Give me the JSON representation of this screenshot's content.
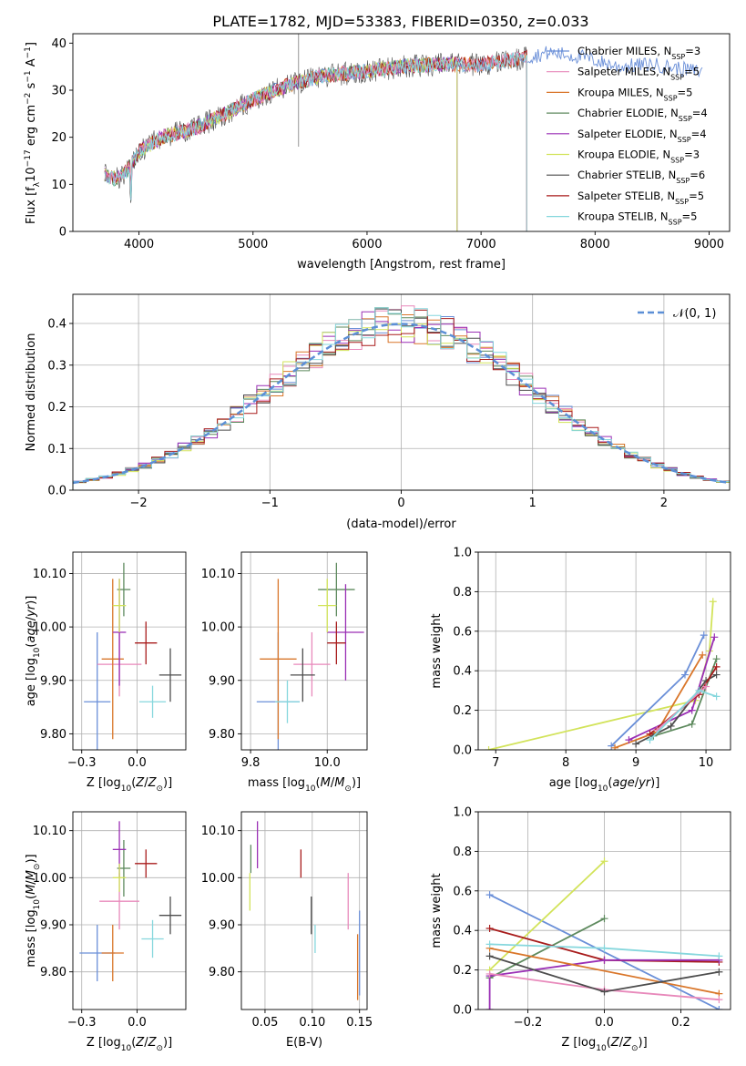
{
  "title": "PLATE=1782, MJD=53383, FIBERID=0350, z=0.033",
  "colors": {
    "chabrier_miles": "#6a8fd8",
    "salpeter_miles": "#e889bb",
    "kroupa_miles": "#d9762a",
    "chabrier_elodie": "#5e8a5e",
    "salpeter_elodie": "#9a2fb5",
    "kroupa_elodie": "#d2e35a",
    "chabrier_stelib": "#4d4d4d",
    "salpeter_stelib": "#a81c1c",
    "kroupa_stelib": "#86d7dd"
  },
  "chart_data": [
    {
      "id": "spectrum",
      "type": "line",
      "xlabel": "wavelength [Angstrom, rest frame]",
      "ylabel": "Flux [f_λ10^-17 erg cm^-2 s^-1 A^-1]",
      "xlim": [
        3420,
        9180
      ],
      "ylim": [
        0,
        42
      ],
      "xticks": [
        4000,
        5000,
        6000,
        7000,
        8000,
        9000
      ],
      "yticks": [
        0,
        10,
        20,
        30,
        40
      ],
      "grid": false,
      "legend_position": "top-right",
      "continuum": {
        "x": [
          3700,
          3800,
          3900,
          4000,
          4200,
          4500,
          4800,
          5000,
          5300,
          5600,
          6000,
          6300,
          6600,
          7000,
          7300,
          7600,
          7900,
          8200,
          8500,
          8900
        ],
        "y": [
          12,
          11,
          13,
          17,
          20,
          22,
          25.5,
          28,
          31,
          33,
          34,
          35,
          35.5,
          35.5,
          36.5,
          38,
          37,
          35,
          35.5,
          34
        ]
      },
      "series": [
        {
          "name": "Chabrier MILES, N_SSP=3",
          "color_key": "chabrier_miles",
          "xmax": 8940
        },
        {
          "name": "Salpeter MILES, N_SSP=5",
          "color_key": "salpeter_miles",
          "xmax": 7400
        },
        {
          "name": "Kroupa MILES, N_SSP=5",
          "color_key": "kroupa_miles",
          "xmax": 7400
        },
        {
          "name": "Chabrier ELODIE, N_SSP=4",
          "color_key": "chabrier_elodie",
          "xmax": 6790
        },
        {
          "name": "Salpeter ELODIE, N_SSP=4",
          "color_key": "salpeter_elodie",
          "xmax": 6790
        },
        {
          "name": "Kroupa ELODIE, N_SSP=3",
          "color_key": "kroupa_elodie",
          "xmax": 6790
        },
        {
          "name": "Chabrier STELIB, N_SSP=6",
          "color_key": "chabrier_stelib",
          "xmax": 7400
        },
        {
          "name": "Salpeter STELIB, N_SSP=5",
          "color_key": "salpeter_stelib",
          "xmax": 7400
        },
        {
          "name": "Kroupa STELIB, N_SSP=5",
          "color_key": "kroupa_stelib",
          "xmax": 7400
        }
      ]
    },
    {
      "id": "residuals",
      "type": "line",
      "xlabel": "(data-model)/error",
      "ylabel": "Normed distribution",
      "xlim": [
        -2.5,
        2.5
      ],
      "ylim": [
        0,
        0.47
      ],
      "xticks": [
        -2,
        -1,
        0,
        1,
        2
      ],
      "yticks": [
        0.0,
        0.1,
        0.2,
        0.3,
        0.4
      ],
      "grid": true,
      "legend_position": "top-right",
      "legend": "N(0,1)",
      "bin_width": 0.1
    },
    {
      "id": "age_vs_Z",
      "type": "scatter",
      "xlabel": "Z [log10(Z/Z⊙)]",
      "ylabel": "age [log10(age/yr)]",
      "xlim": [
        -0.29,
        0.22
      ],
      "ylim": [
        9.77,
        10.14
      ],
      "xticks": [
        -0.25,
        0.0
      ],
      "yticks": [
        9.8,
        9.9,
        10.0,
        10.1
      ],
      "grid": true,
      "points": [
        {
          "color_key": "chabrier_miles",
          "x": -0.18,
          "y": 9.86,
          "xerr": 0.06,
          "yerr": 0.13
        },
        {
          "color_key": "salpeter_miles",
          "x": -0.08,
          "y": 9.93,
          "xerr": 0.1,
          "yerr": 0.06
        },
        {
          "color_key": "kroupa_miles",
          "x": -0.11,
          "y": 9.94,
          "xerr": 0.05,
          "yerr": 0.15
        },
        {
          "color_key": "chabrier_elodie",
          "x": -0.06,
          "y": 10.07,
          "xerr": 0.03,
          "yerr": 0.05
        },
        {
          "color_key": "salpeter_elodie",
          "x": -0.08,
          "y": 9.99,
          "xerr": 0.03,
          "yerr": 0.1
        },
        {
          "color_key": "kroupa_elodie",
          "x": -0.08,
          "y": 10.04,
          "xerr": 0.03,
          "yerr": 0.05
        },
        {
          "color_key": "chabrier_stelib",
          "x": 0.15,
          "y": 9.91,
          "xerr": 0.05,
          "yerr": 0.05
        },
        {
          "color_key": "salpeter_stelib",
          "x": 0.04,
          "y": 9.97,
          "xerr": 0.05,
          "yerr": 0.04
        },
        {
          "color_key": "kroupa_stelib",
          "x": 0.07,
          "y": 9.86,
          "xerr": 0.06,
          "yerr": 0.03
        }
      ]
    },
    {
      "id": "age_vs_mass",
      "type": "scatter",
      "xlabel": "mass [log10(M/M⊙)]",
      "ylabel": "",
      "xlim": [
        9.72,
        10.13
      ],
      "ylim": [
        9.77,
        10.14
      ],
      "xticks": [
        9.75,
        10.0
      ],
      "yticks": [
        9.8,
        9.9,
        10.0,
        10.1
      ],
      "grid": true,
      "points": [
        {
          "color_key": "chabrier_miles",
          "x": 9.84,
          "y": 9.86,
          "xerr": 0.07,
          "yerr": 0.13
        },
        {
          "color_key": "salpeter_miles",
          "x": 9.95,
          "y": 9.93,
          "xerr": 0.06,
          "yerr": 0.06
        },
        {
          "color_key": "kroupa_miles",
          "x": 9.84,
          "y": 9.94,
          "xerr": 0.06,
          "yerr": 0.15
        },
        {
          "color_key": "chabrier_elodie",
          "x": 10.03,
          "y": 10.07,
          "xerr": 0.06,
          "yerr": 0.05
        },
        {
          "color_key": "salpeter_elodie",
          "x": 10.06,
          "y": 9.99,
          "xerr": 0.06,
          "yerr": 0.09
        },
        {
          "color_key": "kroupa_elodie",
          "x": 10.0,
          "y": 10.04,
          "xerr": 0.03,
          "yerr": 0.05
        },
        {
          "color_key": "chabrier_stelib",
          "x": 9.92,
          "y": 9.91,
          "xerr": 0.04,
          "yerr": 0.05
        },
        {
          "color_key": "salpeter_stelib",
          "x": 10.03,
          "y": 9.97,
          "xerr": 0.03,
          "yerr": 0.04
        },
        {
          "color_key": "kroupa_stelib",
          "x": 9.87,
          "y": 9.86,
          "xerr": 0.04,
          "yerr": 0.04
        }
      ]
    },
    {
      "id": "weight_vs_age",
      "type": "line",
      "xlabel": "age [log10(age/yr)]",
      "ylabel": "mass weight",
      "xlim": [
        6.75,
        10.35
      ],
      "ylim": [
        0,
        1.0
      ],
      "xticks": [
        7,
        8,
        9,
        10
      ],
      "yticks": [
        0.0,
        0.2,
        0.4,
        0.6,
        0.8,
        1.0
      ],
      "grid": true,
      "series": [
        {
          "color_key": "kroupa_elodie",
          "x": [
            6.9,
            9.85,
            10.05,
            10.1
          ],
          "y": [
            0.0,
            0.25,
            0.5,
            0.75
          ]
        },
        {
          "color_key": "chabrier_miles",
          "x": [
            8.65,
            9.7,
            9.97
          ],
          "y": [
            0.02,
            0.38,
            0.58
          ]
        },
        {
          "color_key": "kroupa_miles",
          "x": [
            8.7,
            9.3,
            9.95
          ],
          "y": [
            0.01,
            0.09,
            0.48
          ]
        },
        {
          "color_key": "salpeter_elodie",
          "x": [
            8.9,
            9.8,
            10.12
          ],
          "y": [
            0.05,
            0.2,
            0.57
          ]
        },
        {
          "color_key": "chabrier_elodie",
          "x": [
            9.25,
            9.8,
            10.15
          ],
          "y": [
            0.07,
            0.13,
            0.46
          ]
        },
        {
          "color_key": "chabrier_stelib",
          "x": [
            9.0,
            9.5,
            10.0,
            10.15
          ],
          "y": [
            0.03,
            0.12,
            0.35,
            0.38
          ]
        },
        {
          "color_key": "salpeter_stelib",
          "x": [
            9.2,
            9.9,
            10.15
          ],
          "y": [
            0.08,
            0.28,
            0.42
          ]
        },
        {
          "color_key": "salpeter_miles",
          "x": [
            9.3,
            10.0
          ],
          "y": [
            0.1,
            0.32
          ]
        },
        {
          "color_key": "kroupa_stelib",
          "x": [
            9.2,
            9.9,
            10.15
          ],
          "y": [
            0.05,
            0.3,
            0.27
          ]
        }
      ]
    },
    {
      "id": "mass_vs_Z",
      "type": "scatter",
      "xlabel": "Z [log10(Z/Z⊙)]",
      "ylabel": "mass [log10(M/M⊙)]",
      "xlim": [
        -0.29,
        0.22
      ],
      "ylim": [
        9.72,
        10.14
      ],
      "xticks": [
        -0.25,
        0.0
      ],
      "yticks": [
        9.8,
        9.9,
        10.0,
        10.1
      ],
      "grid": true,
      "points": [
        {
          "color_key": "chabrier_miles",
          "x": -0.18,
          "y": 9.84,
          "xerr": 0.08,
          "yerr": 0.06
        },
        {
          "color_key": "salpeter_miles",
          "x": -0.08,
          "y": 9.95,
          "xerr": 0.09,
          "yerr": 0.06
        },
        {
          "color_key": "kroupa_miles",
          "x": -0.11,
          "y": 9.84,
          "xerr": 0.05,
          "yerr": 0.06
        },
        {
          "color_key": "chabrier_elodie",
          "x": -0.06,
          "y": 10.02,
          "xerr": 0.03,
          "yerr": 0.06
        },
        {
          "color_key": "salpeter_elodie",
          "x": -0.08,
          "y": 10.06,
          "xerr": 0.03,
          "yerr": 0.06
        },
        {
          "color_key": "kroupa_elodie",
          "x": -0.08,
          "y": 10.0,
          "xerr": 0.03,
          "yerr": 0.03
        },
        {
          "color_key": "chabrier_stelib",
          "x": 0.15,
          "y": 9.92,
          "xerr": 0.05,
          "yerr": 0.04
        },
        {
          "color_key": "salpeter_stelib",
          "x": 0.04,
          "y": 10.03,
          "xerr": 0.05,
          "yerr": 0.03
        },
        {
          "color_key": "kroupa_stelib",
          "x": 0.07,
          "y": 9.87,
          "xerr": 0.05,
          "yerr": 0.04
        }
      ]
    },
    {
      "id": "mass_vs_ebv",
      "type": "scatter",
      "xlabel": "E(B-V)",
      "ylabel": "",
      "xlim": [
        0.025,
        0.158
      ],
      "ylim": [
        9.72,
        10.14
      ],
      "xticks": [
        0.05,
        0.1,
        0.15
      ],
      "yticks": [
        9.8,
        9.9,
        10.0,
        10.1
      ],
      "grid": true,
      "points": [
        {
          "color_key": "chabrier_miles",
          "x": 0.15,
          "y": 9.84,
          "xerr": 0,
          "yerr": 0.09
        },
        {
          "color_key": "salpeter_miles",
          "x": 0.138,
          "y": 9.95,
          "xerr": 0,
          "yerr": 0.06
        },
        {
          "color_key": "kroupa_miles",
          "x": 0.148,
          "y": 9.81,
          "xerr": 0,
          "yerr": 0.07
        },
        {
          "color_key": "chabrier_elodie",
          "x": 0.035,
          "y": 10.04,
          "xerr": 0,
          "yerr": 0.03
        },
        {
          "color_key": "salpeter_elodie",
          "x": 0.042,
          "y": 10.07,
          "xerr": 0,
          "yerr": 0.05
        },
        {
          "color_key": "kroupa_elodie",
          "x": 0.034,
          "y": 9.97,
          "xerr": 0,
          "yerr": 0.04
        },
        {
          "color_key": "chabrier_stelib",
          "x": 0.099,
          "y": 9.92,
          "xerr": 0,
          "yerr": 0.04
        },
        {
          "color_key": "salpeter_stelib",
          "x": 0.088,
          "y": 10.03,
          "xerr": 0,
          "yerr": 0.03
        },
        {
          "color_key": "kroupa_stelib",
          "x": 0.103,
          "y": 9.87,
          "xerr": 0,
          "yerr": 0.03
        }
      ]
    },
    {
      "id": "weight_vs_Z",
      "type": "line",
      "xlabel": "Z [log10(Z/Z⊙)]",
      "ylabel": "mass weight",
      "xlim": [
        -0.33,
        0.33
      ],
      "ylim": [
        0,
        1.0
      ],
      "xticks": [
        -0.2,
        0.0,
        0.2
      ],
      "yticks": [
        0.0,
        0.2,
        0.4,
        0.6,
        0.8,
        1.0
      ],
      "grid": true,
      "series": [
        {
          "color_key": "chabrier_miles",
          "x": [
            -0.3,
            0.3
          ],
          "y": [
            0.58,
            0.0
          ]
        },
        {
          "color_key": "kroupa_elodie",
          "x": [
            -0.3,
            0.0
          ],
          "y": [
            0.2,
            0.75
          ]
        },
        {
          "color_key": "chabrier_elodie",
          "x": [
            -0.3,
            0.0
          ],
          "y": [
            0.16,
            0.46
          ]
        },
        {
          "color_key": "salpeter_stelib",
          "x": [
            -0.3,
            0.0,
            0.3
          ],
          "y": [
            0.41,
            0.25,
            0.24
          ]
        },
        {
          "color_key": "salpeter_elodie",
          "x": [
            -0.3,
            -0.3,
            0.0,
            0.3
          ],
          "y": [
            0.0,
            0.17,
            0.25,
            0.25
          ]
        },
        {
          "color_key": "kroupa_miles",
          "x": [
            -0.3,
            0.3
          ],
          "y": [
            0.31,
            0.08
          ]
        },
        {
          "color_key": "kroupa_stelib",
          "x": [
            -0.3,
            0.0,
            0.3
          ],
          "y": [
            0.33,
            0.31,
            0.27
          ]
        },
        {
          "color_key": "salpeter_miles",
          "x": [
            -0.3,
            0.0,
            0.3
          ],
          "y": [
            0.18,
            0.1,
            0.05
          ]
        },
        {
          "color_key": "chabrier_stelib",
          "x": [
            -0.3,
            0.0,
            0.3
          ],
          "y": [
            0.27,
            0.09,
            0.19
          ]
        }
      ]
    }
  ]
}
